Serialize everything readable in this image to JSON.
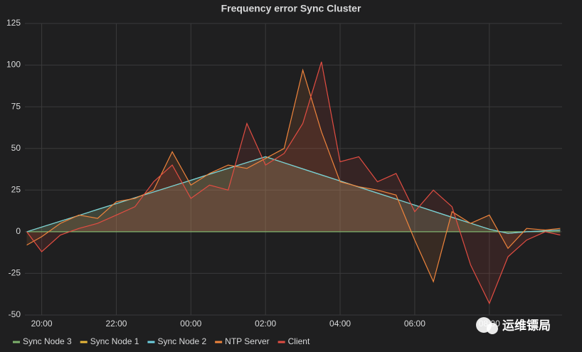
{
  "chart_data": {
    "type": "line",
    "title": "Frequency error Sync Cluster",
    "x": [
      19.6,
      20,
      20.5,
      21,
      21.5,
      22,
      22.5,
      23,
      23.5,
      24,
      24.5,
      25,
      25.5,
      26,
      26.5,
      27,
      27.5,
      28,
      28.5,
      29,
      29.5,
      30,
      30.5,
      31,
      31.5,
      32,
      32.5,
      33,
      33.5,
      33.9
    ],
    "xlim": [
      19.55,
      33.95
    ],
    "xticks": [
      {
        "value": 20,
        "label": "20:00"
      },
      {
        "value": 22,
        "label": "22:00"
      },
      {
        "value": 24,
        "label": "00:00"
      },
      {
        "value": 26,
        "label": "02:00"
      },
      {
        "value": 28,
        "label": "04:00"
      },
      {
        "value": 30,
        "label": "06:00"
      },
      {
        "value": 32,
        "label": "08:00"
      }
    ],
    "ylim": [
      -50,
      125
    ],
    "yticks": [
      -50,
      -25,
      0,
      25,
      50,
      75,
      100,
      125
    ],
    "grid": true,
    "fill": true,
    "series": [
      {
        "name": "Sync Node 3",
        "color": "#7eb26d",
        "values": [
          0,
          0,
          0,
          0,
          0,
          0,
          0,
          0,
          0,
          0,
          0,
          0,
          0,
          0,
          0,
          0,
          0,
          0,
          0,
          0,
          0,
          0,
          0,
          0,
          0,
          0,
          0,
          0,
          0,
          0
        ]
      },
      {
        "name": "Sync Node 1",
        "color": "#eab839",
        "values": [
          0,
          2.8,
          6.3,
          9.8,
          13.4,
          16.9,
          20.4,
          23.9,
          27.4,
          30.9,
          34.5,
          38,
          41.5,
          45,
          41.4,
          37.7,
          34.1,
          30.5,
          26.8,
          23.2,
          19.6,
          16,
          12.3,
          8.7,
          5.1,
          1.5,
          -1,
          0,
          0.5,
          1
        ]
      },
      {
        "name": "Sync Node 2",
        "color": "#6ed0e0",
        "values": [
          0,
          2.8,
          6.3,
          9.8,
          13.4,
          16.9,
          20.4,
          23.9,
          27.4,
          30.9,
          34.5,
          38,
          41.5,
          45,
          41.4,
          37.7,
          34.1,
          30.5,
          26.8,
          23.2,
          19.6,
          16,
          12.3,
          8.7,
          5.1,
          1.5,
          -1,
          0,
          0.5,
          1
        ]
      },
      {
        "name": "NTP Server",
        "color": "#ef843c",
        "values": [
          -8,
          -3,
          5,
          10,
          8,
          18,
          20,
          25,
          48,
          28,
          35,
          40,
          38,
          44,
          50,
          97,
          60,
          30,
          27,
          25,
          22,
          -5,
          -30,
          12,
          5,
          10,
          -10,
          2,
          1,
          2
        ]
      },
      {
        "name": "Client",
        "color": "#e24d42",
        "values": [
          0,
          -12,
          -2,
          2,
          5,
          10,
          15,
          30,
          40,
          20,
          28,
          25,
          65,
          40,
          47,
          65,
          102,
          42,
          45,
          30,
          35,
          12,
          25,
          15,
          -20,
          -43,
          -15,
          -5,
          0,
          -2
        ]
      }
    ],
    "watermark": "运维镖局"
  }
}
